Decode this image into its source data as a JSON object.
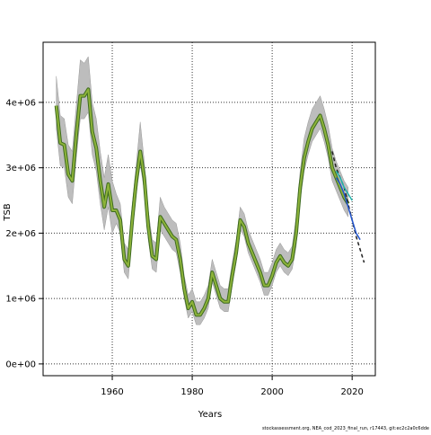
{
  "chart_data": {
    "type": "line",
    "xlabel": "Years",
    "ylabel": "TSB",
    "footnote": "stockassessment.org, NEA_cod_2023_final_run, r17443, git:ec2c2a0c6dde",
    "xlim": [
      1942.7,
      2025.8
    ],
    "xticks": [
      1960,
      1980,
      2000,
      2020
    ],
    "ylim": [
      -180000,
      4920000
    ],
    "yticks": [
      {
        "value": 0,
        "label": "0e+00"
      },
      {
        "value": 1000000,
        "label": "1e+06"
      },
      {
        "value": 2000000,
        "label": "2e+06"
      },
      {
        "value": 3000000,
        "label": "3e+06"
      },
      {
        "value": 4000000,
        "label": "4e+06"
      }
    ],
    "grid": true,
    "band_color": "#bdbdbd",
    "series": [
      {
        "color": "#8db33a",
        "edge_color": "#3d6b1f",
        "x": [
          1946,
          1947,
          1948,
          1949,
          1950,
          1951,
          1952,
          1953,
          1954,
          1955,
          1956,
          1957,
          1958,
          1959,
          1960,
          1961,
          1962,
          1963,
          1964,
          1965,
          1966,
          1967,
          1968,
          1969,
          1970,
          1971,
          1972,
          1973,
          1974,
          1975,
          1976,
          1977,
          1978,
          1979,
          1980,
          1981,
          1982,
          1983,
          1984,
          1985,
          1986,
          1987,
          1988,
          1989,
          1990,
          1991,
          1992,
          1993,
          1994,
          1995,
          1996,
          1997,
          1998,
          1999,
          2000,
          2001,
          2002,
          2003,
          2004,
          2005,
          2006,
          2007,
          2008,
          2009,
          2010,
          2011,
          2012,
          2013,
          2014,
          2015,
          2016,
          2017,
          2018,
          2019
        ],
        "values": [
          3950000.0,
          3380000.0,
          3350000.0,
          2900000.0,
          2800000.0,
          3500000.0,
          4100000.0,
          4100000.0,
          4200000.0,
          3550000.0,
          3300000.0,
          2800000.0,
          2400000.0,
          2750000.0,
          2350000.0,
          2350000.0,
          2200000.0,
          1600000.0,
          1500000.0,
          2200000.0,
          2800000.0,
          3250000.0,
          2850000.0,
          2100000.0,
          1650000.0,
          1600000.0,
          2250000.0,
          2150000.0,
          2050000.0,
          1950000.0,
          1900000.0,
          1600000.0,
          1150000.0,
          850000.0,
          950000.0,
          750000.0,
          750000.0,
          850000.0,
          1000000.0,
          1400000.0,
          1200000.0,
          1000000.0,
          950000.0,
          950000.0,
          1350000.0,
          1700000.0,
          2200000.0,
          2100000.0,
          1850000.0,
          1700000.0,
          1550000.0,
          1400000.0,
          1200000.0,
          1200000.0,
          1350000.0,
          1550000.0,
          1650000.0,
          1550000.0,
          1500000.0,
          1600000.0,
          2000000.0,
          2700000.0,
          3150000.0,
          3400000.0,
          3600000.0,
          3700000.0,
          3800000.0,
          3600000.0,
          3350000.0,
          3000000.0,
          2850000.0,
          2700000.0,
          2550000.0,
          2450000.0
        ],
        "upper": [
          4400000.0,
          3800000.0,
          3750000.0,
          3350000.0,
          3250000.0,
          3950000.0,
          4650000.0,
          4600000.0,
          4700000.0,
          4000000.0,
          3750000.0,
          3250000.0,
          2850000.0,
          3200000.0,
          2800000.0,
          2600000.0,
          2450000.0,
          1850000.0,
          1750000.0,
          2450000.0,
          3050000.0,
          3700000.0,
          3100000.0,
          2350000.0,
          1900000.0,
          1850000.0,
          2550000.0,
          2400000.0,
          2300000.0,
          2200000.0,
          2150000.0,
          1850000.0,
          1350000.0,
          1050000.0,
          1150000.0,
          950000.0,
          950000.0,
          1050000.0,
          1200000.0,
          1600000.0,
          1400000.0,
          1200000.0,
          1150000.0,
          1150000.0,
          1550000.0,
          1900000.0,
          2400000.0,
          2300000.0,
          2050000.0,
          1900000.0,
          1750000.0,
          1600000.0,
          1400000.0,
          1400000.0,
          1550000.0,
          1750000.0,
          1850000.0,
          1750000.0,
          1700000.0,
          1800000.0,
          2250000.0,
          2950000.0,
          3450000.0,
          3700000.0,
          3900000.0,
          4000000.0,
          4100000.0,
          3900000.0,
          3650000.0,
          3300000.0,
          3100000.0,
          2950000.0,
          2800000.0,
          2700000.0
        ],
        "lower": [
          3600000.0,
          3030000.0,
          3000000.0,
          2550000.0,
          2450000.0,
          3150000.0,
          3750000.0,
          3750000.0,
          3850000.0,
          3200000.0,
          2950000.0,
          2450000.0,
          2050000.0,
          2400000.0,
          2000000.0,
          2150000.0,
          2000000.0,
          1400000.0,
          1300000.0,
          2000000.0,
          2600000.0,
          3050000.0,
          2650000.0,
          1900000.0,
          1450000.0,
          1400000.0,
          2050000.0,
          1950000.0,
          1850000.0,
          1750000.0,
          1700000.0,
          1400000.0,
          1000000.0,
          700000.0,
          800000.0,
          600000.0,
          600000.0,
          700000.0,
          850000.0,
          1250000.0,
          1050000.0,
          850000.0,
          800000.0,
          800000.0,
          1200000.0,
          1550000.0,
          2050000.0,
          1950000.0,
          1700000.0,
          1550000.0,
          1400000.0,
          1250000.0,
          1050000.0,
          1050000.0,
          1200000.0,
          1400000.0,
          1500000.0,
          1400000.0,
          1350000.0,
          1450000.0,
          1800000.0,
          2500000.0,
          2950000.0,
          3200000.0,
          3400000.0,
          3500000.0,
          3600000.0,
          3400000.0,
          3150000.0,
          2800000.0,
          2650000.0,
          2500000.0,
          2350000.0,
          2250000.0
        ]
      },
      {
        "color": "#222222",
        "dash": true,
        "x": [
          2015,
          2016,
          2017,
          2018,
          2019,
          2020,
          2021,
          2022,
          2023
        ],
        "values": [
          3250000.0,
          3000000.0,
          2850000.0,
          2700000.0,
          2450000.0,
          2200000.0,
          1950000.0,
          1750000.0,
          1550000.0
        ]
      },
      {
        "color": "#2255cc",
        "x": [
          2016,
          2017,
          2018,
          2019,
          2020,
          2021,
          2022
        ],
        "values": [
          2850000.0,
          2750000.0,
          2600000.0,
          2400000.0,
          2200000.0,
          2000000.0,
          1900000.0
        ]
      },
      {
        "color": "#20b2aa",
        "x": [
          2016,
          2017,
          2018,
          2019,
          2020
        ],
        "values": [
          2950000.0,
          2850000.0,
          2700000.0,
          2600000.0,
          2500000.0
        ]
      }
    ]
  }
}
